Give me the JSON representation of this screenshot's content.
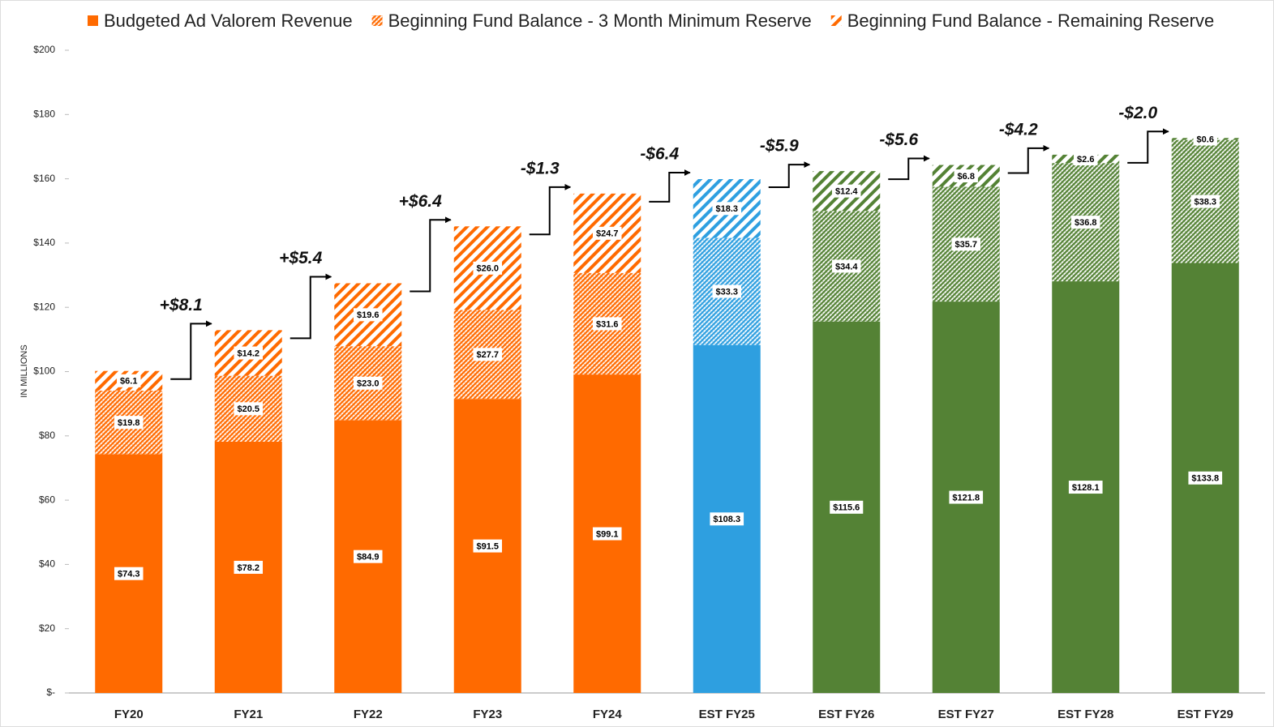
{
  "chart_data": {
    "type": "stacked_bar",
    "y_label": "IN MILLIONS",
    "categories": [
      "FY20",
      "FY21",
      "FY22",
      "FY23",
      "FY24",
      "EST FY25",
      "EST FY26",
      "EST FY27",
      "EST FY28",
      "EST FY29"
    ],
    "category_colors": [
      "#ff6a00",
      "#ff6a00",
      "#ff6a00",
      "#ff6a00",
      "#ff6a00",
      "#2e9fe0",
      "#548235",
      "#548235",
      "#548235",
      "#548235"
    ],
    "series": [
      {
        "name": "Budgeted Ad Valorem Revenue",
        "color": "#ff6a00",
        "fill": "solid",
        "values": [
          74.3,
          78.2,
          84.9,
          91.5,
          99.1,
          108.3,
          115.6,
          121.8,
          128.1,
          133.8
        ],
        "value_labels": [
          "$74.3",
          "$78.2",
          "$84.9",
          "$91.5",
          "$99.1",
          "$108.3",
          "$115.6",
          "$121.8",
          "$128.1",
          "$133.8"
        ]
      },
      {
        "name": "Beginning Fund Balance - 3 Month Minimum Reserve",
        "color": "#ff6a00",
        "fill": "fine-hatch",
        "values": [
          19.8,
          20.5,
          23.0,
          27.7,
          31.6,
          33.3,
          34.4,
          35.7,
          36.8,
          38.3
        ],
        "value_labels": [
          "$19.8",
          "$20.5",
          "$23.0",
          "$27.7",
          "$31.6",
          "$33.3",
          "$34.4",
          "$35.7",
          "$36.8",
          "$38.3"
        ]
      },
      {
        "name": "Beginning Fund Balance - Remaining Reserve",
        "color": "#ff6a00",
        "fill": "stripes",
        "values": [
          6.1,
          14.2,
          19.6,
          26.0,
          24.7,
          18.3,
          12.4,
          6.8,
          2.6,
          0.6
        ],
        "value_labels": [
          "$6.1",
          "$14.2",
          "$19.6",
          "$26.0",
          "$24.7",
          "$18.3",
          "$12.4",
          "$6.8",
          "$2.6",
          "$0.6"
        ]
      }
    ],
    "change_annotations": [
      "+$8.1",
      "+$5.4",
      "+$6.4",
      "-$1.3",
      "-$6.4",
      "-$5.9",
      "-$5.6",
      "-$4.2",
      "-$2.0"
    ],
    "ylim": [
      0,
      200
    ],
    "yticks": [
      {
        "value": 0,
        "label": "$-"
      },
      {
        "value": 20,
        "label": "$20"
      },
      {
        "value": 40,
        "label": "$40"
      },
      {
        "value": 60,
        "label": "$60"
      },
      {
        "value": 80,
        "label": "$80"
      },
      {
        "value": 100,
        "label": "$100"
      },
      {
        "value": 120,
        "label": "$120"
      },
      {
        "value": 140,
        "label": "$140"
      },
      {
        "value": 160,
        "label": "$160"
      },
      {
        "value": 180,
        "label": "$180"
      },
      {
        "value": 200,
        "label": "$200"
      }
    ],
    "legend": "top"
  }
}
